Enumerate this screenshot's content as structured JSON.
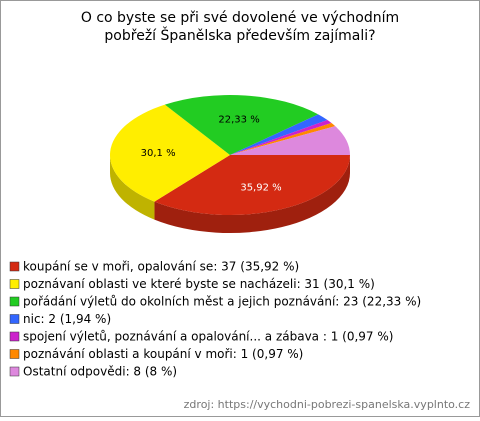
{
  "chart_data": {
    "type": "pie",
    "title": "O co byste se při své dovolené ve východním pobřeží Španělska především zajímali?",
    "categories": [
      "koupání se v moři, opalování se: 37 (35,92 %)",
      "poznávaní oblasti ve které byste se nacházeli: 31 (30,1 %)",
      "pořádání výletů do okolních měst a jejich poznávání: 23 (22,33 %)",
      "nic: 2 (1,94 %)",
      "spojení výletů, poznávání a opalování... a zábava : 1 (0,97 %)",
      "poznávání oblasti a koupání v moři: 1 (0,97 %)",
      "Ostatní odpovědi: 8 (8 %)"
    ],
    "values": [
      35.92,
      30.1,
      22.33,
      1.94,
      0.97,
      0.97,
      8
    ],
    "value_labels": [
      "35,92 %",
      "30,1 %",
      "22,33 %",
      null,
      null,
      null,
      null
    ],
    "colors": [
      "#d42a12",
      "#ffee00",
      "#22cc22",
      "#3366ff",
      "#cc22cc",
      "#ff8800",
      "#dd88dd"
    ],
    "source": "zdroj: https://vychodni-pobrezi-spanelska.vyplnto.cz"
  }
}
